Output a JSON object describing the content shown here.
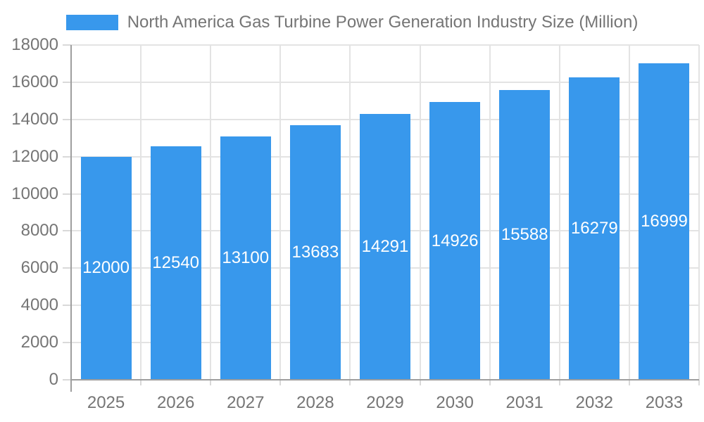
{
  "chart_data": {
    "type": "bar",
    "title": "North America Gas Turbine Power Generation Industry Size (Million)",
    "categories": [
      "2025",
      "2026",
      "2027",
      "2028",
      "2029",
      "2030",
      "2031",
      "2032",
      "2033"
    ],
    "series": [
      {
        "name": "North America Gas Turbine Power Generation Industry Size (Million)",
        "values": [
          12000,
          12540,
          13100,
          13683,
          14291,
          14926,
          15588,
          16279,
          16999
        ]
      }
    ],
    "xlabel": "",
    "ylabel": "",
    "ylim": [
      0,
      18000
    ],
    "ytick_step": 2000,
    "ytick_labels": [
      "0",
      "2000",
      "4000",
      "6000",
      "8000",
      "10000",
      "12000",
      "14000",
      "16000",
      "18000"
    ],
    "legend_position": "top",
    "grid": "horizontal and vertical",
    "value_labels": "inside bars, centered, white",
    "colors": {
      "bar": "#3898EC",
      "bar_label_text": "#FFFFFF",
      "axis_line": "#9E9E9E",
      "gridline": "#E3E3E3",
      "tick": "#D9D9D9",
      "text": "#757575",
      "background": "#FFFFFF"
    }
  }
}
